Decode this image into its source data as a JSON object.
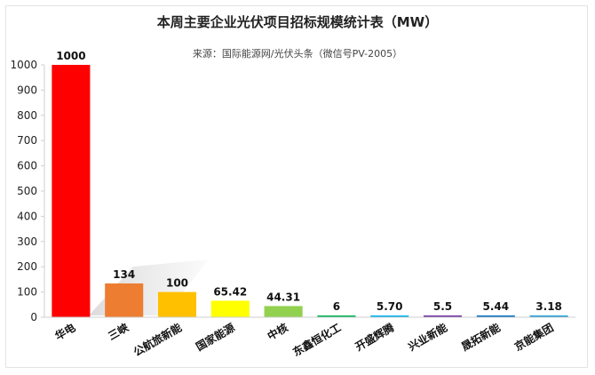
{
  "chart_data": {
    "type": "bar",
    "title": "本周主要企业光伏项目招标规模统计表（MW）",
    "subtitle": "来源：国际能源网/光伏头条（微信号PV-2005）",
    "categories": [
      "华电",
      "三峡",
      "公航旅新能",
      "国家能源",
      "中核",
      "东鑫恒化工",
      "开盛辉腾",
      "兴业新能",
      "晟拓新能",
      "京能集团"
    ],
    "values": [
      1000,
      134,
      100,
      65.42,
      44.31,
      6,
      5.7,
      5.5,
      5.44,
      3.18
    ],
    "value_labels": [
      "1000",
      "134",
      "100",
      "65.42",
      "44.31",
      "6",
      "5.70",
      "5.5",
      "5.44",
      "3.18"
    ],
    "colors": [
      "#ff0000",
      "#ed7d31",
      "#ffc000",
      "#ffff00",
      "#92d050",
      "#00b050",
      "#00b0f0",
      "#7030a0",
      "#0070c0",
      "#1f9cd6"
    ],
    "yticks": [
      "0",
      "100",
      "200",
      "300",
      "400",
      "500",
      "600",
      "700",
      "800",
      "900",
      "1000"
    ],
    "ylim": [
      0,
      1000
    ],
    "xlabel": "",
    "ylabel": "",
    "grid": false,
    "legend": "none"
  }
}
